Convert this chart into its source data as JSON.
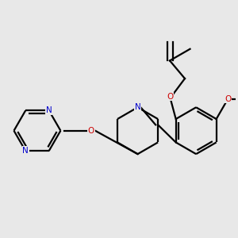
{
  "bg": "#e8e8e8",
  "bond_color": "#000000",
  "N_color": "#0000cc",
  "O_color": "#cc0000",
  "lw": 1.6,
  "fs": 7.5,
  "figsize": [
    3.0,
    3.0
  ],
  "dpi": 100,
  "xlim": [
    -1.5,
    8.5
  ],
  "ylim": [
    -3.5,
    4.5
  ]
}
